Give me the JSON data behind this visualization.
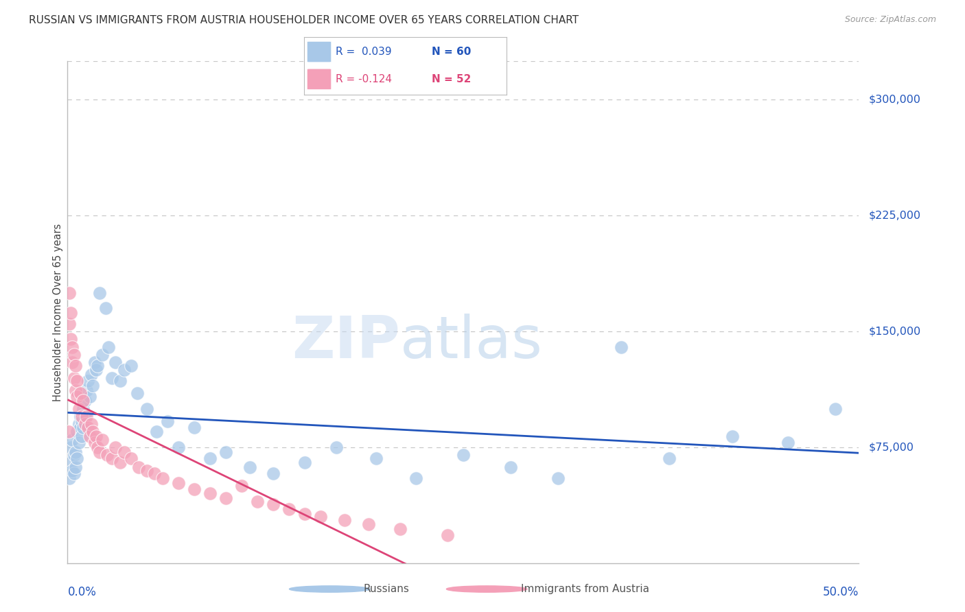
{
  "title": "RUSSIAN VS IMMIGRANTS FROM AUSTRIA HOUSEHOLDER INCOME OVER 65 YEARS CORRELATION CHART",
  "source": "Source: ZipAtlas.com",
  "ylabel": "Householder Income Over 65 years",
  "xlim": [
    0.0,
    0.5
  ],
  "ylim": [
    0,
    325000
  ],
  "yticks": [
    75000,
    150000,
    225000,
    300000
  ],
  "ytick_labels": [
    "$75,000",
    "$150,000",
    "$225,000",
    "$300,000"
  ],
  "background_color": "#ffffff",
  "grid_color": "#c8c8c8",
  "blue_color": "#a8c8e8",
  "blue_line_color": "#2255bb",
  "pink_color": "#f4a0b8",
  "pink_line_color": "#dd4477",
  "legend_blue_r": "R =  0.039",
  "legend_blue_n": "N = 60",
  "legend_pink_r": "R = -0.124",
  "legend_pink_n": "N = 52",
  "watermark_zip": "ZIP",
  "watermark_atlas": "atlas",
  "russians_x": [
    0.001,
    0.002,
    0.002,
    0.003,
    0.003,
    0.004,
    0.004,
    0.005,
    0.005,
    0.006,
    0.006,
    0.007,
    0.007,
    0.008,
    0.008,
    0.009,
    0.009,
    0.01,
    0.01,
    0.011,
    0.011,
    0.012,
    0.013,
    0.014,
    0.015,
    0.016,
    0.017,
    0.018,
    0.019,
    0.02,
    0.022,
    0.024,
    0.026,
    0.028,
    0.03,
    0.033,
    0.036,
    0.04,
    0.044,
    0.05,
    0.056,
    0.063,
    0.07,
    0.08,
    0.09,
    0.1,
    0.115,
    0.13,
    0.15,
    0.17,
    0.195,
    0.22,
    0.25,
    0.28,
    0.31,
    0.35,
    0.38,
    0.42,
    0.455,
    0.485
  ],
  "russians_y": [
    55000,
    65000,
    75000,
    60000,
    80000,
    58000,
    70000,
    72000,
    62000,
    85000,
    68000,
    90000,
    78000,
    88000,
    95000,
    82000,
    92000,
    100000,
    88000,
    105000,
    95000,
    112000,
    118000,
    108000,
    122000,
    115000,
    130000,
    125000,
    128000,
    175000,
    135000,
    165000,
    140000,
    120000,
    130000,
    118000,
    125000,
    128000,
    110000,
    100000,
    85000,
    92000,
    75000,
    88000,
    68000,
    72000,
    62000,
    58000,
    65000,
    75000,
    68000,
    55000,
    70000,
    62000,
    55000,
    140000,
    68000,
    82000,
    78000,
    100000
  ],
  "austria_x": [
    0.0005,
    0.001,
    0.001,
    0.002,
    0.002,
    0.003,
    0.003,
    0.004,
    0.004,
    0.005,
    0.005,
    0.006,
    0.006,
    0.007,
    0.008,
    0.009,
    0.01,
    0.011,
    0.012,
    0.013,
    0.014,
    0.015,
    0.016,
    0.017,
    0.018,
    0.019,
    0.02,
    0.022,
    0.025,
    0.028,
    0.03,
    0.033,
    0.036,
    0.04,
    0.045,
    0.05,
    0.055,
    0.06,
    0.07,
    0.08,
    0.09,
    0.1,
    0.11,
    0.12,
    0.13,
    0.14,
    0.15,
    0.16,
    0.175,
    0.19,
    0.21,
    0.24
  ],
  "austria_y": [
    85000,
    175000,
    155000,
    162000,
    145000,
    140000,
    130000,
    135000,
    120000,
    128000,
    112000,
    118000,
    108000,
    100000,
    110000,
    95000,
    105000,
    90000,
    95000,
    88000,
    82000,
    90000,
    85000,
    78000,
    82000,
    75000,
    72000,
    80000,
    70000,
    68000,
    75000,
    65000,
    72000,
    68000,
    62000,
    60000,
    58000,
    55000,
    52000,
    48000,
    45000,
    42000,
    50000,
    40000,
    38000,
    35000,
    32000,
    30000,
    28000,
    25000,
    22000,
    18000
  ]
}
